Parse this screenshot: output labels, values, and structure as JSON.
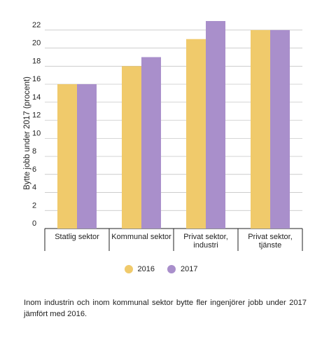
{
  "chart_data": {
    "type": "bar",
    "categories": [
      "Statlig sektor",
      "Kommunal sektor",
      "Privat sektor, industri",
      "Privat sektor, tjänste"
    ],
    "category_lines": [
      [
        "Statlig sektor"
      ],
      [
        "Kommunal sektor"
      ],
      [
        "Privat sektor,",
        "industri"
      ],
      [
        "Privat sektor,",
        "tjänste"
      ]
    ],
    "series": [
      {
        "name": "2016",
        "values": [
          16,
          18,
          21,
          22
        ],
        "color": "#f0ca6b"
      },
      {
        "name": "2017",
        "values": [
          16,
          19,
          23,
          22
        ],
        "color": "#a98fcb"
      }
    ],
    "ylabel": "Bytte jobb under 2017 (procent)",
    "yticks": [
      0,
      2,
      4,
      6,
      8,
      10,
      12,
      14,
      16,
      18,
      20,
      22
    ],
    "ylim": [
      0,
      23
    ],
    "grid": true,
    "legend_position": "bottom-center"
  },
  "caption": "Inom industrin och inom kommunal sektor bytte fler ingenjörer jobb under 2017 jämfört med 2016."
}
